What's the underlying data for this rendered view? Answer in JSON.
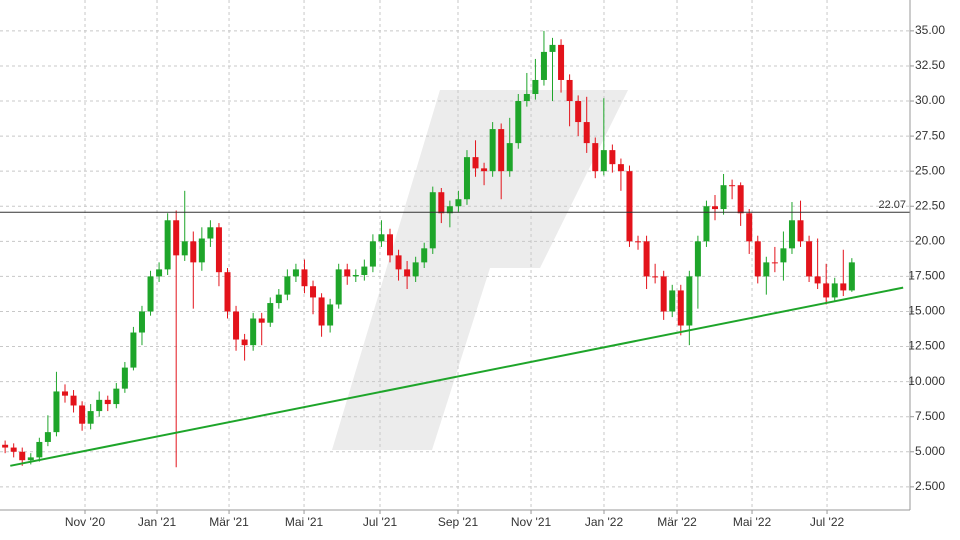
{
  "chart_data": {
    "type": "candlestick",
    "up_color": "#1ea52a",
    "down_color": "#e3131b",
    "xlim": [
      -0.6,
      105.8
    ],
    "xticks": [
      {
        "value": 9.34,
        "label": "Nov '20"
      },
      {
        "value": 17.76,
        "label": "Jan '21"
      },
      {
        "value": 26.18,
        "label": "Mär '21"
      },
      {
        "value": 34.95,
        "label": "Mai '21"
      },
      {
        "value": 43.83,
        "label": "Jul '21"
      },
      {
        "value": 52.95,
        "label": "Sep '21"
      },
      {
        "value": 61.49,
        "label": "Nov '21"
      },
      {
        "value": 70.02,
        "label": "Jan '22"
      },
      {
        "value": 78.56,
        "label": "Mär '22"
      },
      {
        "value": 87.33,
        "label": "Mai '22"
      },
      {
        "value": 96.1,
        "label": "Jul '22"
      }
    ],
    "ylim": [
      0.85,
      37.2
    ],
    "yticks": [
      {
        "value": 35,
        "label": "35.00"
      },
      {
        "value": 32.5,
        "label": "32.50"
      },
      {
        "value": 30,
        "label": "30.00"
      },
      {
        "value": 27.5,
        "label": "27.50"
      },
      {
        "value": 25,
        "label": "25.00"
      },
      {
        "value": 22.5,
        "label": "22.50"
      },
      {
        "value": 20,
        "label": "20.00"
      },
      {
        "value": 17.5,
        "label": "17.500"
      },
      {
        "value": 15,
        "label": "15.000"
      },
      {
        "value": 12.5,
        "label": "12.500"
      },
      {
        "value": 10,
        "label": "10.000"
      },
      {
        "value": 7.5,
        "label": "7.500"
      },
      {
        "value": 5,
        "label": "5.000"
      },
      {
        "value": 2.5,
        "label": "2.500"
      }
    ],
    "grid": true,
    "reference_line": {
      "value": 22.07,
      "label": "22.07",
      "color": "#333333"
    },
    "trendline": {
      "x": [
        0.6,
        105
      ],
      "y": [
        4.0,
        16.7
      ],
      "color": "#1ea52a"
    },
    "open": [
      5.5,
      5.3,
      5.0,
      4.4,
      4.6,
      5.7,
      6.4,
      9.3,
      9.0,
      8.3,
      7.0,
      7.9,
      8.7,
      8.4,
      9.5,
      11.0,
      13.5,
      15.0,
      17.5,
      18.0,
      21.5,
      19.0,
      20.0,
      18.5,
      20.2,
      21.0,
      17.8,
      15.0,
      13.0,
      12.6,
      14.5,
      14.2,
      15.6,
      16.2,
      17.5,
      18.0,
      16.8,
      16.0,
      14.0,
      15.5,
      18.0,
      17.5,
      17.6,
      18.2,
      20.0,
      20.5,
      19.0,
      18.0,
      17.5,
      18.5,
      19.5,
      23.5,
      22.0,
      22.5,
      23.0,
      26.0,
      25.2,
      25.0,
      28.0,
      25.0,
      27.0,
      30.0,
      30.5,
      31.5,
      33.5,
      34.0,
      31.5,
      30.0,
      28.5,
      27.0,
      25.0,
      26.5,
      25.5,
      25.0,
      20.0,
      20.0,
      17.5,
      17.5,
      15.0,
      16.5,
      14.0,
      17.5,
      20.0,
      22.5,
      22.3,
      24.0,
      24.0,
      22.0,
      20.0,
      17.5,
      18.5,
      18.5,
      19.5,
      21.5,
      20.0,
      17.5,
      17.0,
      16.0,
      17.0,
      16.5
    ],
    "high": [
      5.8,
      5.6,
      5.3,
      4.9,
      6.0,
      7.6,
      10.7,
      9.8,
      9.4,
      8.6,
      8.4,
      9.3,
      9.0,
      9.9,
      11.4,
      13.9,
      15.4,
      17.9,
      18.5,
      22.0,
      22.2,
      23.6,
      20.7,
      21.0,
      21.5,
      21.3,
      18.1,
      15.4,
      13.4,
      14.9,
      14.9,
      16.0,
      16.6,
      18.0,
      18.4,
      18.7,
      17.2,
      16.3,
      15.9,
      18.4,
      18.4,
      18.0,
      18.7,
      20.5,
      21.5,
      20.9,
      19.4,
      18.6,
      18.9,
      19.9,
      23.9,
      23.8,
      22.9,
      23.6,
      26.5,
      27.2,
      25.6,
      28.5,
      28.4,
      28.8,
      30.5,
      32.0,
      33.0,
      35.0,
      34.5,
      34.4,
      31.9,
      30.4,
      30.3,
      27.4,
      30.2,
      26.9,
      25.9,
      25.4,
      20.4,
      20.4,
      18.4,
      17.9,
      16.9,
      16.9,
      17.9,
      20.4,
      22.9,
      23.3,
      24.8,
      24.4,
      24.2,
      22.3,
      20.4,
      18.9,
      19.6,
      20.7,
      22.8,
      22.9,
      20.4,
      20.2,
      18.4,
      17.4,
      19.4,
      18.8
    ],
    "low": [
      4.9,
      4.6,
      4.0,
      4.1,
      4.3,
      5.4,
      6.1,
      8.5,
      7.8,
      6.5,
      6.6,
      7.5,
      7.9,
      8.1,
      9.2,
      10.8,
      12.6,
      14.7,
      17.1,
      17.6,
      3.9,
      18.6,
      15.2,
      17.9,
      19.6,
      16.8,
      14.5,
      12.2,
      11.5,
      12.2,
      12.6,
      13.9,
      15.2,
      15.8,
      17.1,
      16.3,
      14.8,
      13.2,
      13.5,
      15.2,
      16.9,
      17.1,
      17.2,
      17.8,
      19.6,
      18.5,
      17.2,
      16.6,
      17.1,
      18.1,
      19.1,
      21.3,
      21.0,
      22.1,
      22.6,
      24.6,
      24.0,
      24.6,
      23.0,
      24.6,
      26.6,
      29.6,
      30.1,
      31.1,
      30.0,
      30.6,
      28.2,
      27.5,
      26.3,
      24.5,
      24.7,
      24.9,
      23.6,
      19.6,
      19.4,
      16.6,
      17.0,
      14.4,
      14.6,
      13.3,
      12.6,
      15.2,
      19.6,
      21.5,
      21.9,
      23.0,
      21.1,
      19.1,
      17.0,
      16.2,
      17.8,
      17.2,
      19.1,
      19.6,
      17.1,
      16.6,
      15.5,
      15.7,
      16.1,
      16.4
    ],
    "close": [
      5.3,
      5.0,
      4.4,
      4.6,
      5.7,
      6.4,
      9.3,
      9.0,
      8.3,
      7.0,
      7.9,
      8.7,
      8.4,
      9.5,
      11.0,
      13.5,
      15.0,
      17.5,
      18.0,
      21.5,
      19.0,
      20.0,
      18.5,
      20.2,
      21.0,
      17.8,
      15.0,
      13.0,
      12.6,
      14.5,
      14.2,
      15.6,
      16.2,
      17.5,
      18.0,
      16.8,
      16.0,
      14.0,
      15.5,
      18.0,
      17.5,
      17.6,
      18.2,
      20.0,
      20.5,
      19.0,
      18.0,
      17.5,
      18.5,
      19.5,
      23.5,
      22.0,
      22.5,
      23.0,
      26.0,
      25.2,
      25.0,
      28.0,
      25.0,
      27.0,
      30.0,
      30.5,
      31.5,
      33.5,
      34.0,
      31.5,
      30.0,
      28.5,
      27.0,
      25.0,
      26.5,
      25.5,
      25.0,
      20.0,
      20.0,
      17.5,
      17.5,
      15.0,
      16.5,
      14.0,
      17.5,
      20.0,
      22.5,
      22.3,
      24.0,
      24.0,
      22.0,
      20.0,
      17.5,
      18.5,
      18.5,
      19.5,
      21.5,
      20.0,
      17.5,
      17.0,
      16.0,
      17.0,
      16.5,
      18.5
    ]
  }
}
